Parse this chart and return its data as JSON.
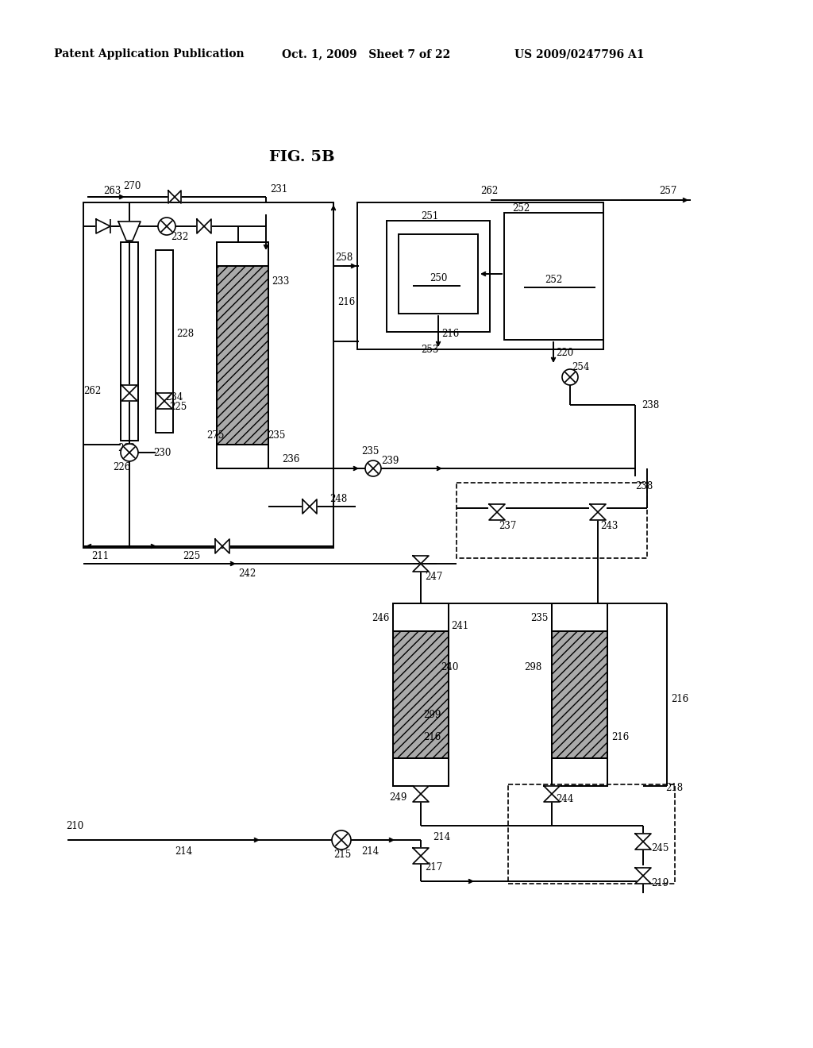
{
  "title": "FIG. 5B",
  "header_left": "Patent Application Publication",
  "header_mid": "Oct. 1, 2009   Sheet 7 of 22",
  "header_right": "US 2009/0247796 A1",
  "bg_color": "#ffffff",
  "diagram_color": "#000000"
}
